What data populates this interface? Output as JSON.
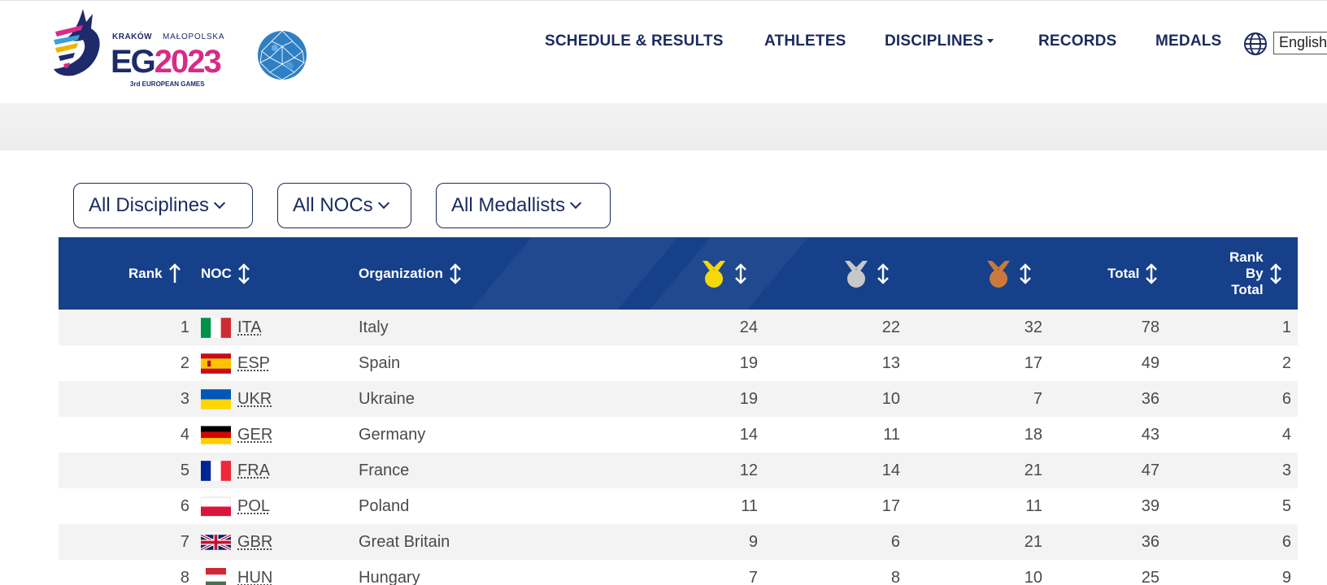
{
  "header": {
    "logo": {
      "line1": "KRAKÓW",
      "line2": "MAŁOPOLSKA",
      "eg": "EG",
      "year": "2023",
      "sub": "3rd EUROPEAN GAMES"
    },
    "nav": [
      {
        "label": "SCHEDULE & RESULTS",
        "has_caret": false
      },
      {
        "label": "ATHLETES",
        "has_caret": false
      },
      {
        "label": "DISCIPLINES",
        "has_caret": true
      },
      {
        "label": "RECORDS",
        "has_caret": false
      },
      {
        "label": "MEDALS",
        "has_caret": false
      }
    ],
    "language": "English"
  },
  "filters": {
    "disciplines": "All Disciplines",
    "nocs": "All NOCs",
    "medallists": "All Medallists"
  },
  "table": {
    "headers": {
      "rank": "Rank",
      "noc": "NOC",
      "organization": "Organization",
      "gold": "gold-medal-icon",
      "silver": "silver-medal-icon",
      "bronze": "bronze-medal-icon",
      "total": "Total",
      "rank_by_total_1": "Rank",
      "rank_by_total_2": "By",
      "rank_by_total_3": "Total"
    },
    "colors": {
      "header_bg": "#16408a",
      "gold": "#f5d80a",
      "silver": "#c8c8c8",
      "bronze": "#c97a3a"
    },
    "rows": [
      {
        "rank": "1",
        "noc": "ITA",
        "org": "Italy",
        "gold": "24",
        "silver": "22",
        "bronze": "32",
        "total": "78",
        "rank_total": "1",
        "flag": "italy-flag"
      },
      {
        "rank": "2",
        "noc": "ESP",
        "org": "Spain",
        "gold": "19",
        "silver": "13",
        "bronze": "17",
        "total": "49",
        "rank_total": "2",
        "flag": "spain-flag"
      },
      {
        "rank": "3",
        "noc": "UKR",
        "org": "Ukraine",
        "gold": "19",
        "silver": "10",
        "bronze": "7",
        "total": "36",
        "rank_total": "6",
        "flag": "ukraine-flag"
      },
      {
        "rank": "4",
        "noc": "GER",
        "org": "Germany",
        "gold": "14",
        "silver": "11",
        "bronze": "18",
        "total": "43",
        "rank_total": "4",
        "flag": "germany-flag"
      },
      {
        "rank": "5",
        "noc": "FRA",
        "org": "France",
        "gold": "12",
        "silver": "14",
        "bronze": "21",
        "total": "47",
        "rank_total": "3",
        "flag": "france-flag"
      },
      {
        "rank": "6",
        "noc": "POL",
        "org": "Poland",
        "gold": "11",
        "silver": "17",
        "bronze": "11",
        "total": "39",
        "rank_total": "5",
        "flag": "poland-flag"
      },
      {
        "rank": "7",
        "noc": "GBR",
        "org": "Great Britain",
        "gold": "9",
        "silver": "6",
        "bronze": "21",
        "total": "36",
        "rank_total": "6",
        "flag": "uk-flag"
      },
      {
        "rank": "8",
        "noc": "HUN",
        "org": "Hungary",
        "gold": "7",
        "silver": "8",
        "bronze": "10",
        "total": "25",
        "rank_total": "9",
        "flag": "hungary-flag"
      }
    ]
  }
}
